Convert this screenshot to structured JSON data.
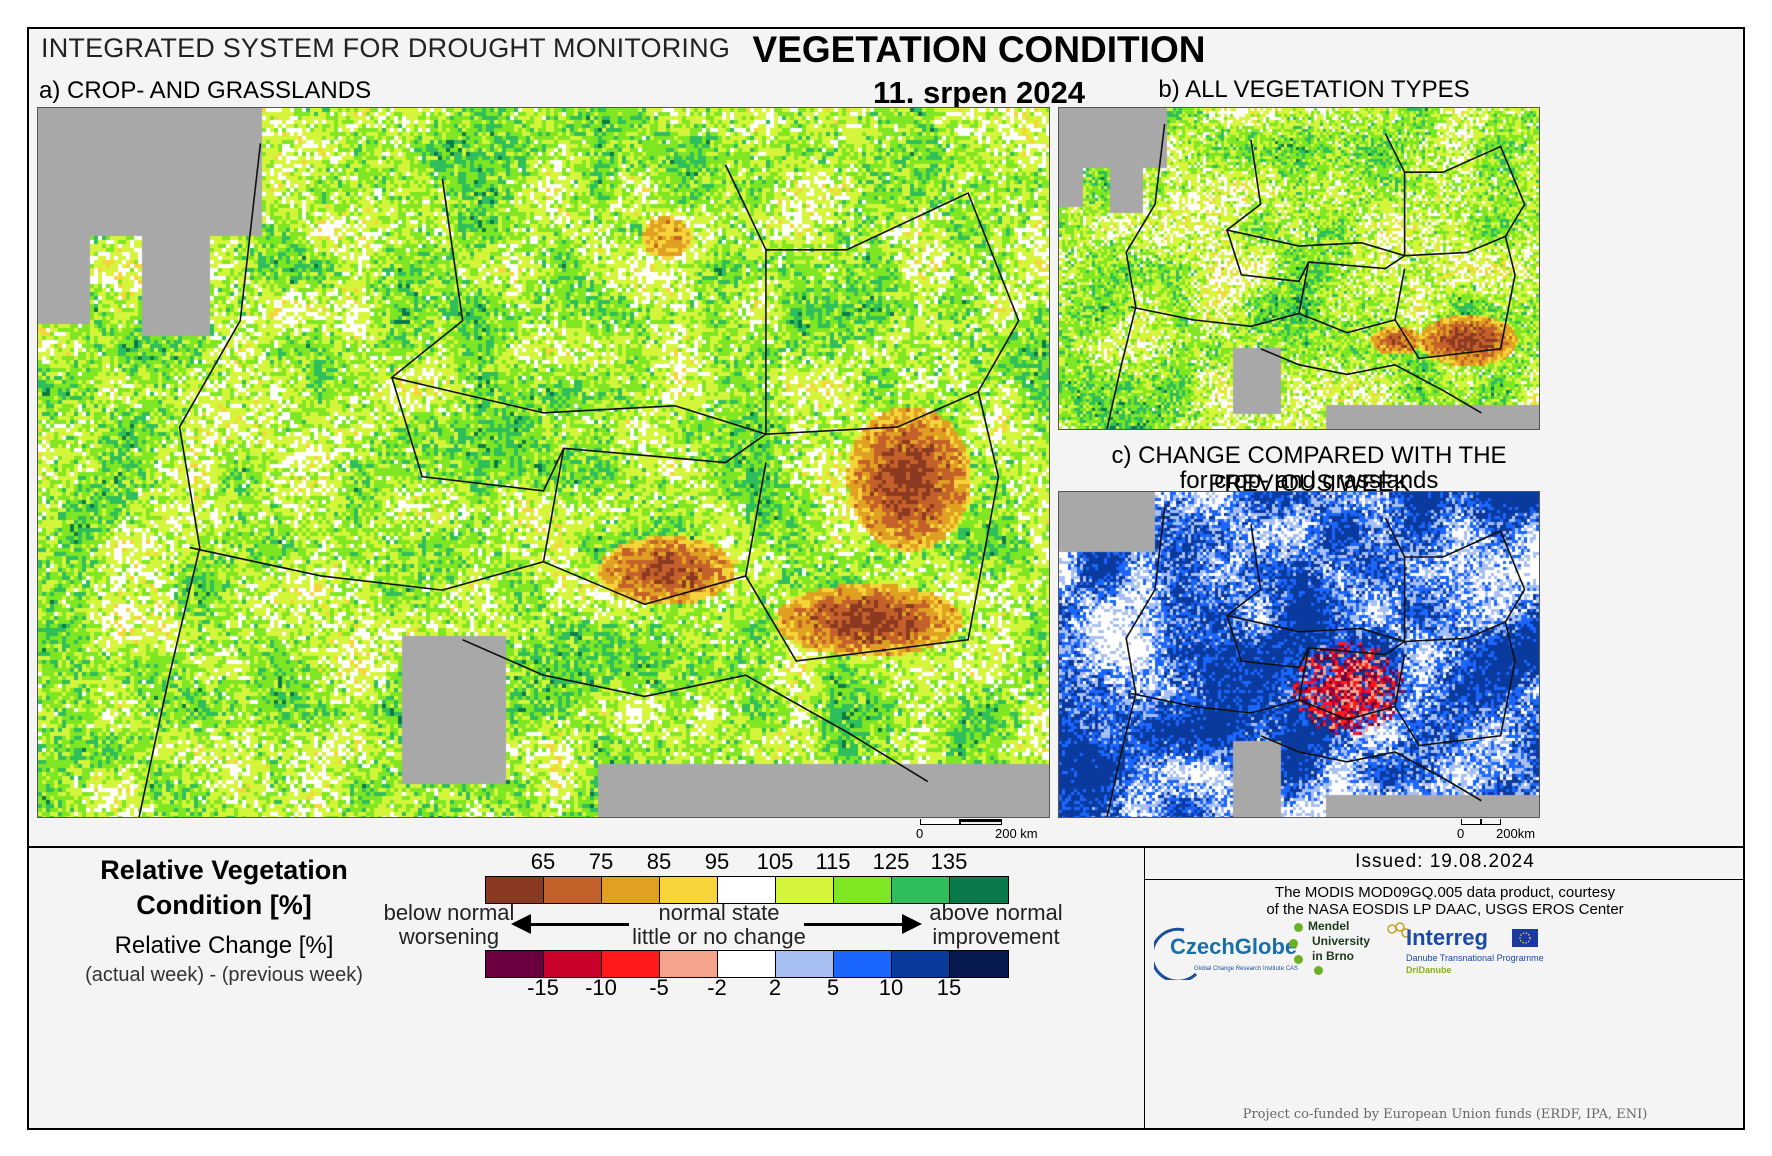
{
  "header": {
    "system": "INTEGRATED SYSTEM FOR DROUGHT MONITORING",
    "title": "VEGETATION CONDITION",
    "date": "11. srpen 2024"
  },
  "panels": {
    "a_label": "a) CROP- AND GRASSLANDS",
    "b_label": "b) ALL VEGETATION TYPES",
    "c_label_1": "c) CHANGE COMPARED WITH THE PREVIOUS WEEK",
    "c_label_2": "for crop- and grasslands"
  },
  "scalebars": {
    "main": {
      "zero": "0",
      "end": "200 km"
    },
    "small": {
      "zero": "0",
      "end": "200km"
    }
  },
  "legend": {
    "rvc_title_1": "Relative Vegetation",
    "rvc_title_2": "Condition [%]",
    "rc_title": "Relative Change [%]",
    "rc_sub": "(actual week) - (previous week)",
    "rvc_ticks": [
      "65",
      "75",
      "85",
      "95",
      "105",
      "115",
      "125",
      "135"
    ],
    "rvc_colors": [
      "#8b3a22",
      "#c4602a",
      "#e0a022",
      "#f6d43a",
      "#ffffff",
      "#d4f53a",
      "#7ee622",
      "#2ebe5c",
      "#0a7a4a"
    ],
    "rc_ticks": [
      "-15",
      "-10",
      "-5",
      "-2",
      "2",
      "5",
      "10",
      "15"
    ],
    "rc_colors": [
      "#6a0040",
      "#c8002a",
      "#ff1a1a",
      "#f4a48a",
      "#ffffff",
      "#a8bff2",
      "#1a66ff",
      "#0a3a9e",
      "#061a50"
    ],
    "below_1": "below normal",
    "below_2": "worsening",
    "normal_1": "normal state",
    "normal_2": "little or no change",
    "above_1": "above normal",
    "above_2": "improvement"
  },
  "footer": {
    "issued": "Issued: 19.08.2024",
    "credit_1": "The MODIS MOD09GQ.005 data product, courtesy",
    "credit_2": "of the NASA EOSDIS LP DAAC, USGS EROS Center",
    "czechglobe": "CzechGlobe",
    "czechglobe_sub": "Global Change Research Institute CAS",
    "mendel_1": "Mendel",
    "mendel_2": "University",
    "mendel_3": "in Brno",
    "interreg": "Interreg",
    "interreg_sub_1": "Danube Transnational Programme",
    "interreg_sub_2": "DriDanube",
    "funded": "Project co-funded by European Union funds (ERDF, IPA, ENI)"
  }
}
